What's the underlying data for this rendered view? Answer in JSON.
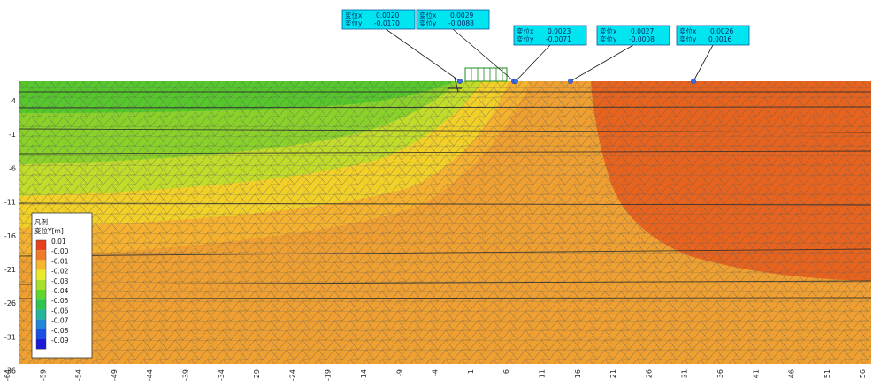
{
  "legend": {
    "title_line1": "凡例",
    "title_line2": "変位Y[m]",
    "entries": [
      {
        "label": "0.01",
        "color": "#e8401e"
      },
      {
        "label": "-0.00",
        "color": "#f07a25"
      },
      {
        "label": "-0.01",
        "color": "#f7b62d"
      },
      {
        "label": "-0.02",
        "color": "#e9ea2a"
      },
      {
        "label": "-0.03",
        "color": "#a6e02a"
      },
      {
        "label": "-0.04",
        "color": "#5fd62d"
      },
      {
        "label": "-0.05",
        "color": "#2ec54e"
      },
      {
        "label": "-0.06",
        "color": "#22b59a"
      },
      {
        "label": "-0.07",
        "color": "#1f86d8"
      },
      {
        "label": "-0.08",
        "color": "#1a4fe6"
      },
      {
        "label": "-0.09",
        "color": "#1a1ad6"
      }
    ]
  },
  "y_axis_labels": [
    "4",
    "-1",
    "-6",
    "-11",
    "-16",
    "-21",
    "-26",
    "-31",
    "-36"
  ],
  "x_axis_labels": [
    "-64",
    "-59",
    "-54",
    "-49",
    "-44",
    "-39",
    "-34",
    "-29",
    "-24",
    "-19",
    "-14",
    "-9",
    "-4",
    "1",
    "6",
    "11",
    "16",
    "21",
    "26",
    "31",
    "36",
    "41",
    "46",
    "51",
    "56"
  ],
  "callouts": [
    {
      "line1_label": "変位x",
      "line1_value": "0.0020",
      "line2_label": "変位y",
      "line2_value": "-0.0170"
    },
    {
      "line1_label": "変位x",
      "line1_value": "0.0029",
      "line2_label": "変位y",
      "line2_value": "-0.0088"
    },
    {
      "line1_label": "変位x",
      "line1_value": "0.0023",
      "line2_label": "変位y",
      "line2_value": "-0.0071"
    },
    {
      "line1_label": "変位x",
      "line1_value": "0.0027",
      "line2_label": "変位y",
      "line2_value": "-0.0008"
    },
    {
      "line1_label": "変位x",
      "line1_value": "0.0026",
      "line2_label": "変位y",
      "line2_value": "0.0016"
    }
  ],
  "colors": {
    "callout_fill": "#00e5f0",
    "callout_border": "#0a5aa6",
    "mesh_line": "#5a5a5a",
    "orange_base": "#f0a030",
    "deep_orange": "#e8641e",
    "yellow": "#f2d028",
    "green": "#8ad22a",
    "bright_green": "#56c82c",
    "marker": "#3a6cf0"
  }
}
